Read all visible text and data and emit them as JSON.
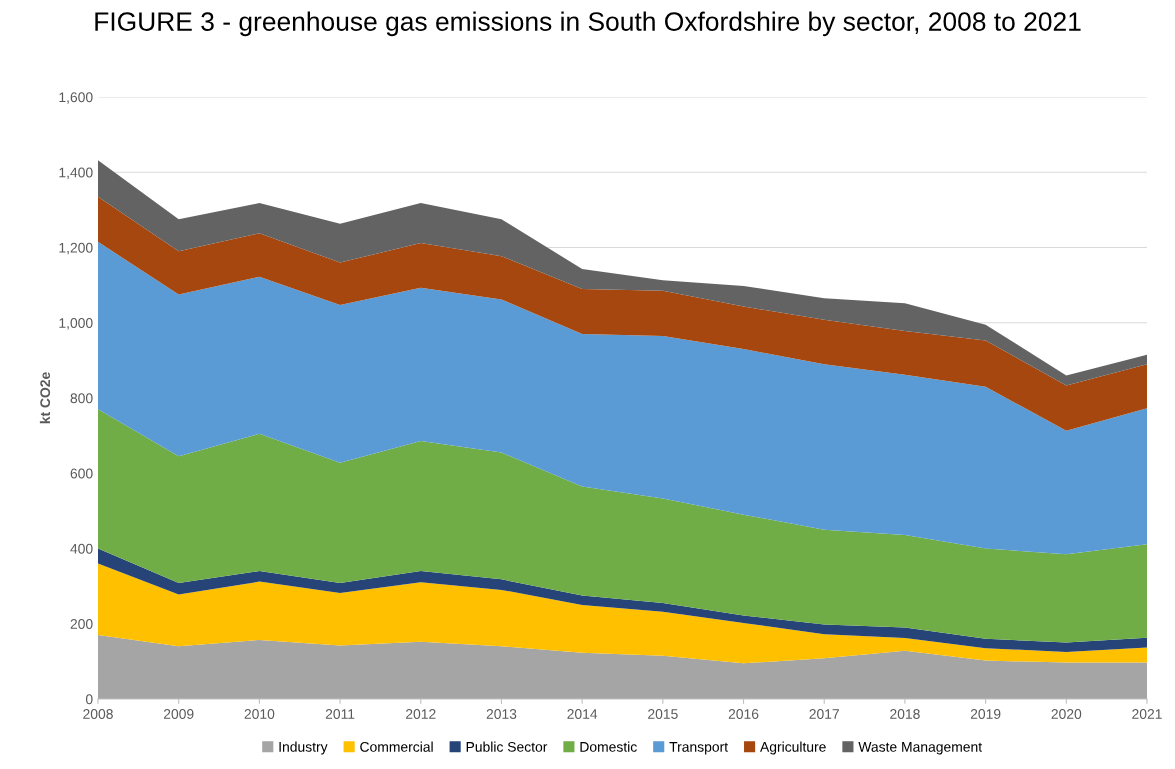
{
  "chart_data": {
    "type": "area",
    "stacked": true,
    "title": "FIGURE 3 - greenhouse gas emissions in South Oxfordshire by sector, 2008 to 2021",
    "ylabel": "kt CO2e",
    "categories": [
      "2008",
      "2009",
      "2010",
      "2011",
      "2012",
      "2013",
      "2014",
      "2015",
      "2016",
      "2017",
      "2018",
      "2019",
      "2020",
      "2021"
    ],
    "series": [
      {
        "name": "Industry",
        "color": "#a5a5a5",
        "values": [
          170,
          140,
          157,
          142,
          152,
          140,
          123,
          115,
          95,
          108,
          128,
          102,
          97,
          97
        ]
      },
      {
        "name": "Commercial",
        "color": "#ffc000",
        "values": [
          190,
          138,
          155,
          140,
          158,
          150,
          127,
          117,
          107,
          64,
          34,
          33,
          28,
          40
        ]
      },
      {
        "name": "Public Sector",
        "color": "#264478",
        "values": [
          40,
          30,
          28,
          26,
          30,
          28,
          25,
          23,
          20,
          26,
          28,
          25,
          25,
          26
        ]
      },
      {
        "name": "Domestic",
        "color": "#70ad47",
        "values": [
          370,
          337,
          365,
          320,
          346,
          337,
          290,
          278,
          268,
          252,
          246,
          240,
          235,
          248
        ]
      },
      {
        "name": "Transport",
        "color": "#5b9bd5",
        "values": [
          445,
          430,
          417,
          419,
          407,
          407,
          405,
          432,
          440,
          440,
          426,
          430,
          328,
          362
        ]
      },
      {
        "name": "Agriculture",
        "color": "#a5470f",
        "values": [
          120,
          115,
          116,
          113,
          119,
          115,
          120,
          120,
          113,
          118,
          116,
          123,
          120,
          117
        ]
      },
      {
        "name": "Waste Management",
        "color": "#636363",
        "values": [
          97,
          85,
          80,
          103,
          106,
          98,
          53,
          28,
          55,
          57,
          74,
          42,
          27,
          25
        ]
      }
    ],
    "ylim": [
      0,
      1600
    ],
    "yticks": [
      0,
      {
        "value": 200,
        "label": "200"
      },
      {
        "value": 400,
        "label": "400"
      },
      {
        "value": 600,
        "label": "600"
      },
      {
        "value": 800,
        "label": "800"
      },
      {
        "value": 1000,
        "label": "1,000"
      },
      {
        "value": 1200,
        "label": "1,200"
      },
      {
        "value": 1400,
        "label": "1,400"
      },
      {
        "value": 1600,
        "label": "1,600"
      }
    ],
    "grid": "y",
    "legend": "bottom"
  }
}
